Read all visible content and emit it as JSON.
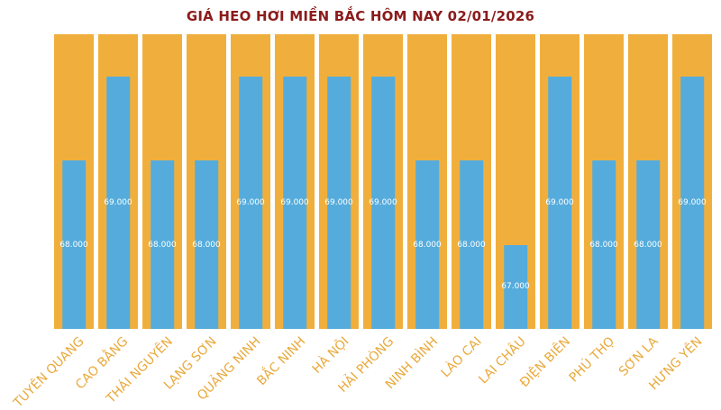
{
  "title": "GIÁ HEO HƠI MIỀN BẮC HÔM NAY 02/01/2026",
  "chart_data": {
    "type": "bar",
    "title": "GIÁ HEO HƠI MIỀN BẮC HÔM NAY 02/01/2026",
    "categories": [
      "TUYÊN QUANG",
      "CAO BẰNG",
      "THÁI NGUYÊN",
      "LẠNG SƠN",
      "QUẢNG NINH",
      "BẮC NINH",
      "HÀ NỘI",
      "HẢI PHÒNG",
      "NINH BÌNH",
      "LÀO CAI",
      "LAI CHÂU",
      "ĐIỆN BIÊN",
      "PHÚ THỌ",
      "SƠN LA",
      "HƯNG YÊN"
    ],
    "values": [
      68000,
      69000,
      68000,
      68000,
      69000,
      69000,
      69000,
      69000,
      68000,
      68000,
      67000,
      69000,
      68000,
      68000,
      69000
    ],
    "value_labels": [
      "68.000",
      "69.000",
      "68.000",
      "68.000",
      "69.000",
      "69.000",
      "69.000",
      "69.000",
      "68.000",
      "68.000",
      "67.000",
      "69.000",
      "68.000",
      "68.000",
      "69.000"
    ],
    "xlabel": "",
    "ylabel": "",
    "ylim": [
      66000,
      69500
    ],
    "grid": false,
    "legend": false,
    "colors": {
      "bar": "#55ACDC",
      "column_background": "#F0AF3C",
      "value_label": "#FFFFFF",
      "category_label": "#E9A93B",
      "title": "#8B1B1B",
      "page_background": "#FFFFFF"
    }
  }
}
